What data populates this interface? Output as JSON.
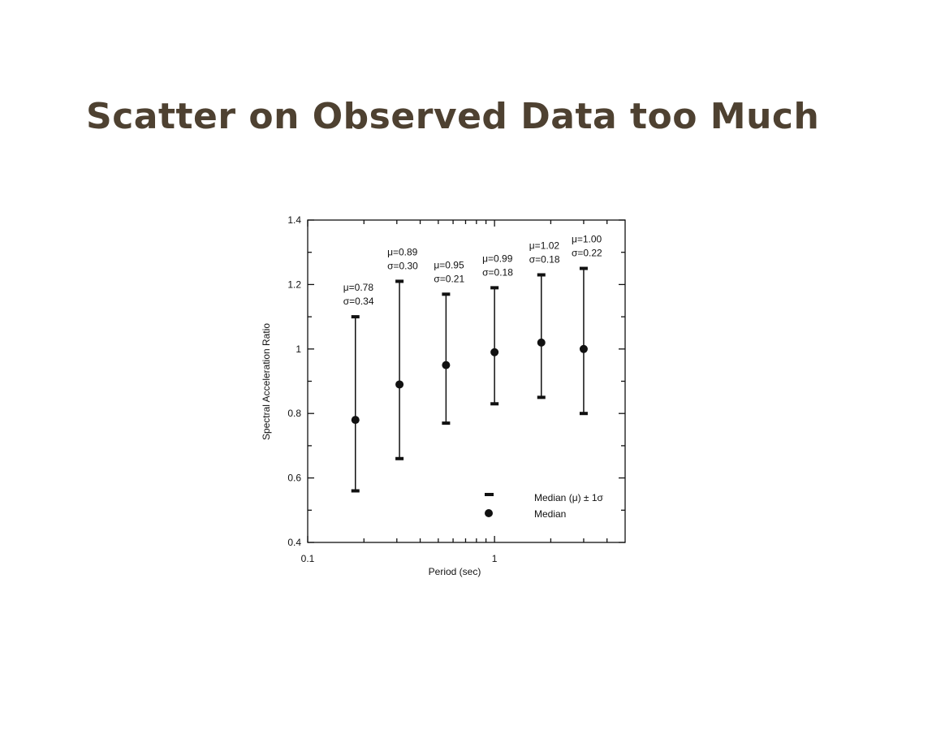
{
  "chart_data": {
    "type": "scatter",
    "title": "Scatter on Observed Data too Much",
    "x_label": "Period (sec)",
    "y_label": "Spectral Acceleration Ratio",
    "x_log": true,
    "xlim": [
      0.1,
      5
    ],
    "xticks": [
      0.1,
      1
    ],
    "xminorticks": [
      0.2,
      0.3,
      0.4,
      0.5,
      0.6,
      0.7,
      0.8,
      0.9,
      2,
      3,
      4
    ],
    "ylim": [
      0.4,
      1.4
    ],
    "yticks": [
      0.4,
      0.6,
      0.8,
      1,
      1.2,
      1.4
    ],
    "yminorticks": [
      0.5,
      0.7,
      0.9,
      1.1,
      1.3
    ],
    "x": [
      0.18,
      0.31,
      0.55,
      1,
      1.78,
      3
    ],
    "series": [
      {
        "name": "Median",
        "color": "#111111",
        "values": [
          0.78,
          0.89,
          0.95,
          0.99,
          1.02,
          1.0
        ]
      },
      {
        "name": "Median (μ) ± 1σ",
        "color": "#111111",
        "upper": [
          1.1,
          1.21,
          1.17,
          1.19,
          1.23,
          1.25
        ],
        "lower": [
          0.56,
          0.66,
          0.77,
          0.83,
          0.85,
          0.8
        ]
      }
    ],
    "annotations": [
      [
        "μ=0.78",
        "σ=0.34"
      ],
      [
        "μ=0.89",
        "σ=0.30"
      ],
      [
        "μ=0.95",
        "σ=0.21"
      ],
      [
        "μ=0.99",
        "σ=0.18"
      ],
      [
        "μ=1.02",
        "σ=0.18"
      ],
      [
        "μ=1.00",
        "σ=0.22"
      ]
    ]
  }
}
